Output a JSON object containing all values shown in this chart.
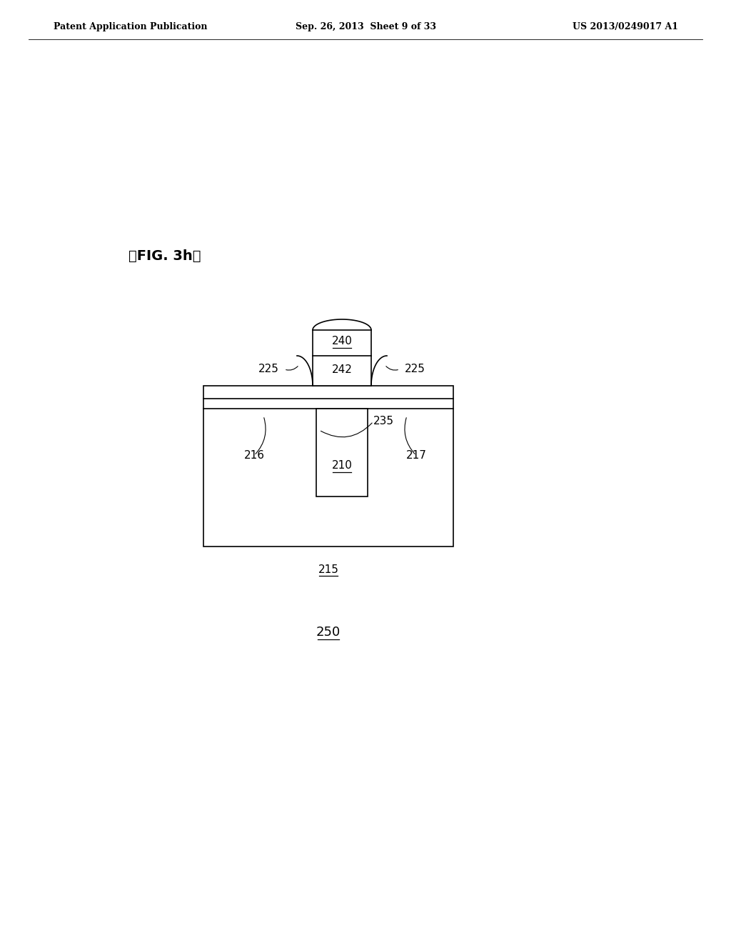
{
  "bg_color": "#ffffff",
  "header_left": "Patent Application Publication",
  "header_mid": "Sep. 26, 2013  Sheet 9 of 33",
  "header_right": "US 2013/0249017 A1",
  "fig_label": "【FIG. 3h】",
  "label_250": "250",
  "label_215": "215",
  "label_210": "210",
  "label_235": "235",
  "label_216": "216",
  "label_217": "217",
  "label_240": "240",
  "label_242": "242",
  "label_225": "225",
  "line_color": "#000000",
  "line_width": 1.2,
  "header_fontsize": 9,
  "label_fontsize": 11,
  "fig_label_fontsize": 14
}
